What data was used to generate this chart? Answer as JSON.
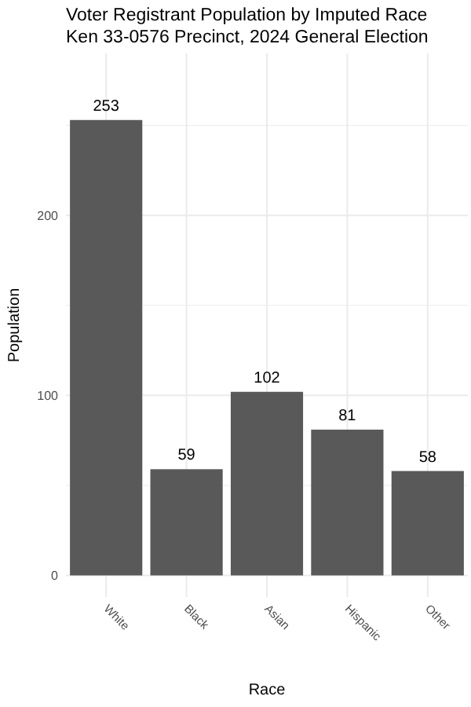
{
  "chart_data": {
    "type": "bar",
    "title": "Voter Registrant Population by Imputed Race",
    "subtitle": "Ken 33-0576 Precinct,  2024 General Election",
    "xlabel": "Race",
    "ylabel": "Population",
    "categories": [
      "White",
      "Black",
      "Asian",
      "Hispanic",
      "Other"
    ],
    "values": [
      253,
      59,
      102,
      81,
      58
    ],
    "color": "#595959",
    "data_labels": true,
    "ylim": [
      -12,
      290
    ],
    "yticks": [
      0,
      {
        "value": 50,
        "label": null
      },
      100,
      {
        "value": 150,
        "label": null
      },
      200,
      {
        "value": 250,
        "label": null
      }
    ],
    "grid": true
  }
}
